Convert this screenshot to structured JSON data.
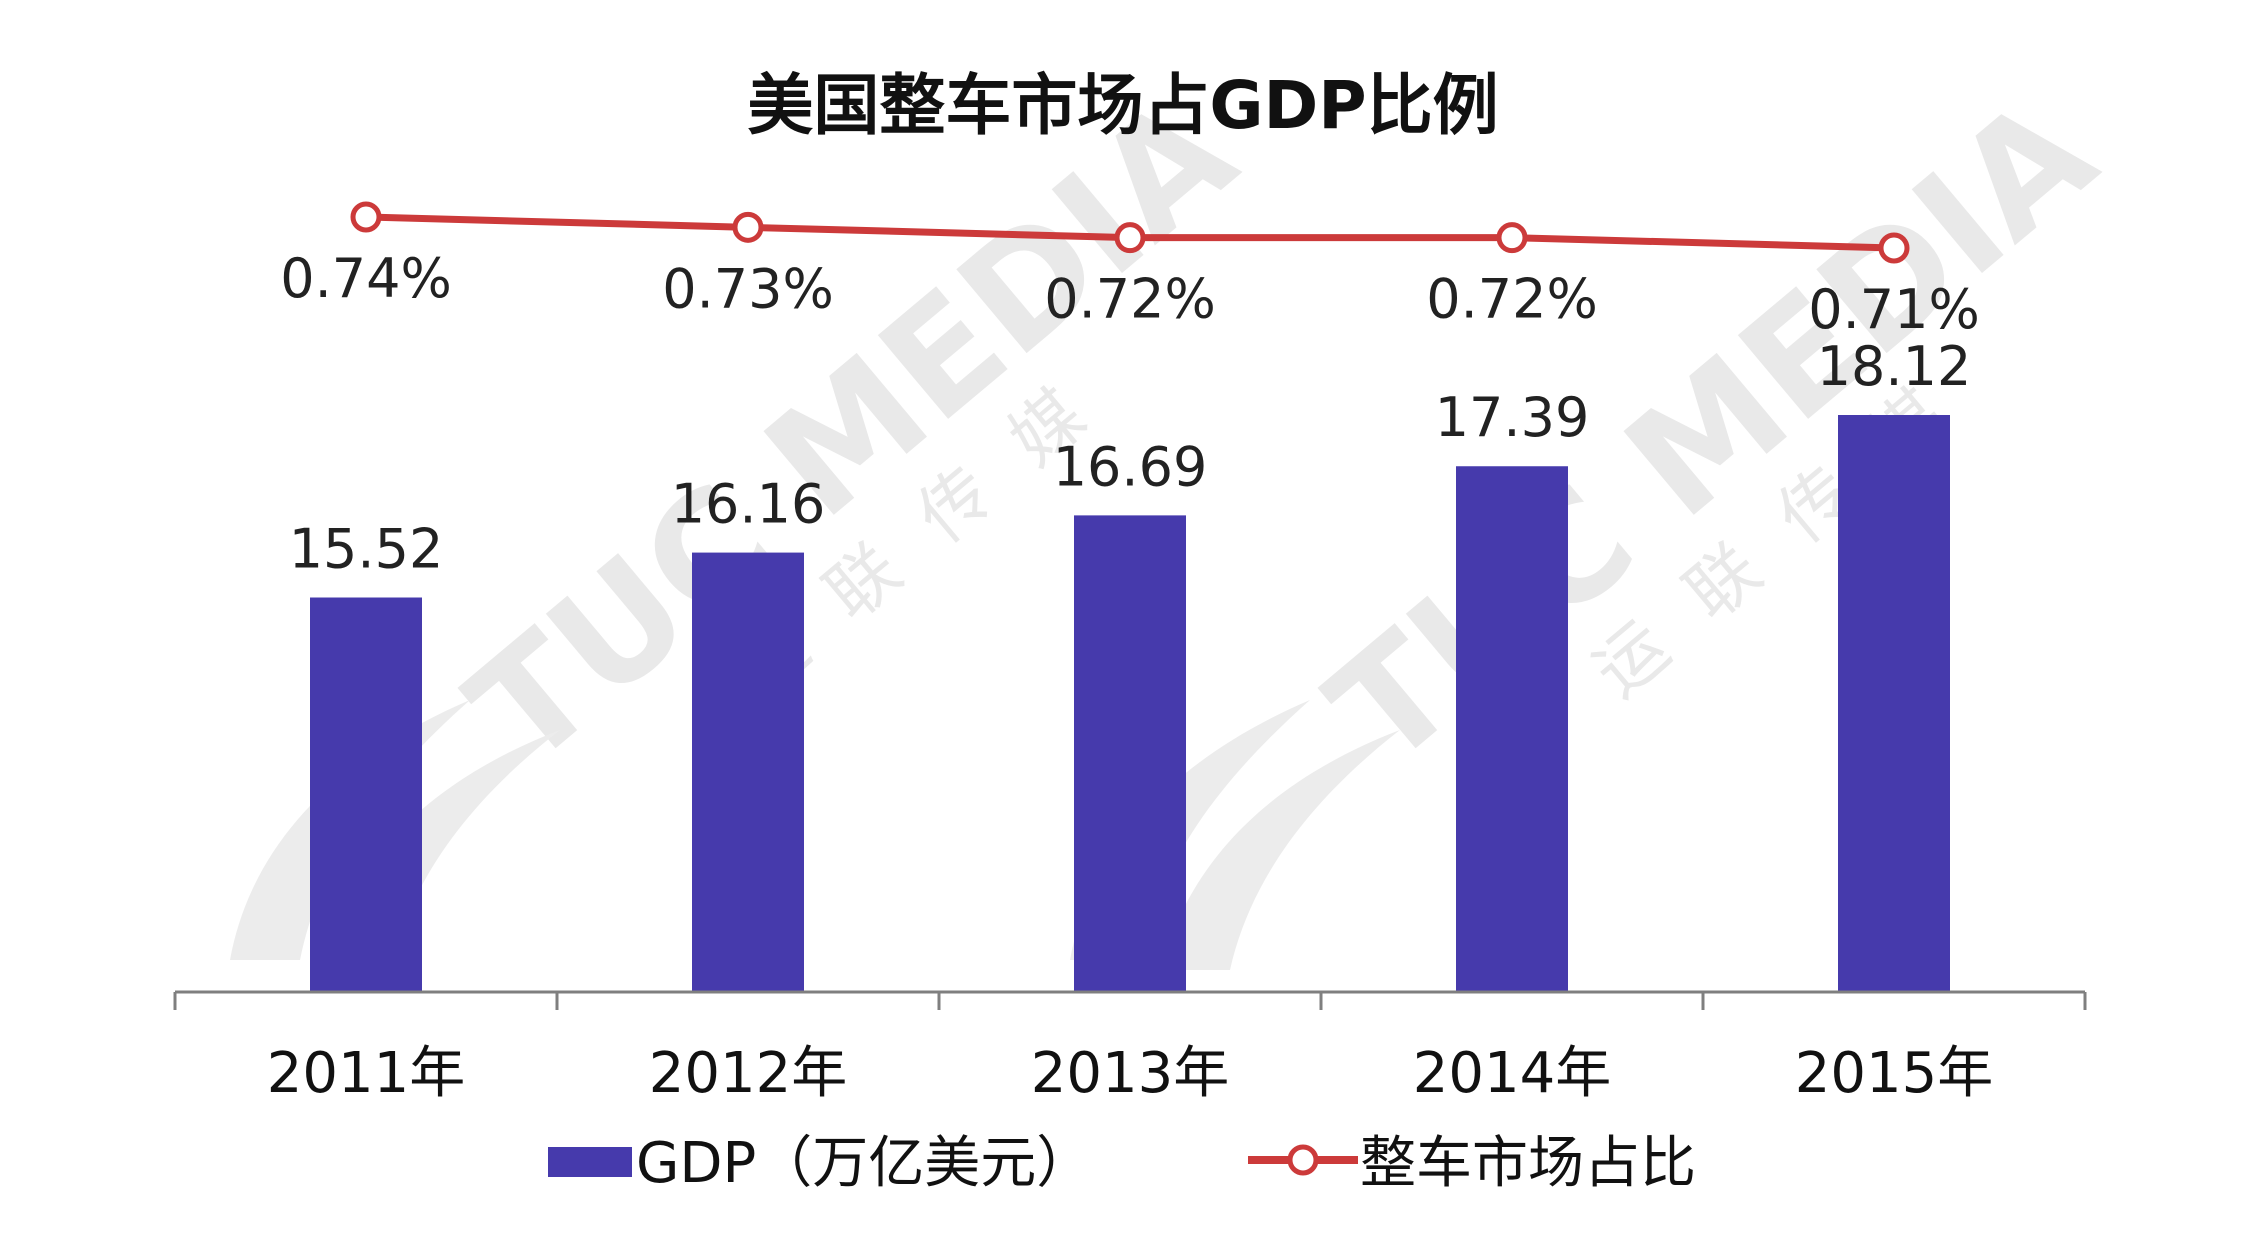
{
  "chart_data": {
    "type": "bar",
    "title": "美国整车市场占GDP比例",
    "categories": [
      "2011年",
      "2012年",
      "2013年",
      "2014年",
      "2015年"
    ],
    "series": [
      {
        "name": "GDP（万亿美元）",
        "type": "bar",
        "values": [
          15.52,
          16.16,
          16.69,
          17.39,
          18.12
        ],
        "value_labels": [
          "15.52",
          "16.16",
          "16.69",
          "17.39",
          "18.12"
        ],
        "color": "#463aac"
      },
      {
        "name": "整车市场占比",
        "type": "line",
        "values": [
          0.74,
          0.73,
          0.72,
          0.72,
          0.71
        ],
        "value_labels": [
          "0.74%",
          "0.73%",
          "0.72%",
          "0.72%",
          "0.71%"
        ],
        "color": "#cc3a3a"
      }
    ],
    "bar_axis_range": [
      9.9,
      18.12
    ],
    "line_axis_range": [
      0.71,
      0.74
    ],
    "legend_position": "bottom",
    "grid": false
  },
  "watermark": {
    "text": "TUC MEDIA",
    "chinese": [
      "运",
      "联",
      "传",
      "媒"
    ]
  }
}
